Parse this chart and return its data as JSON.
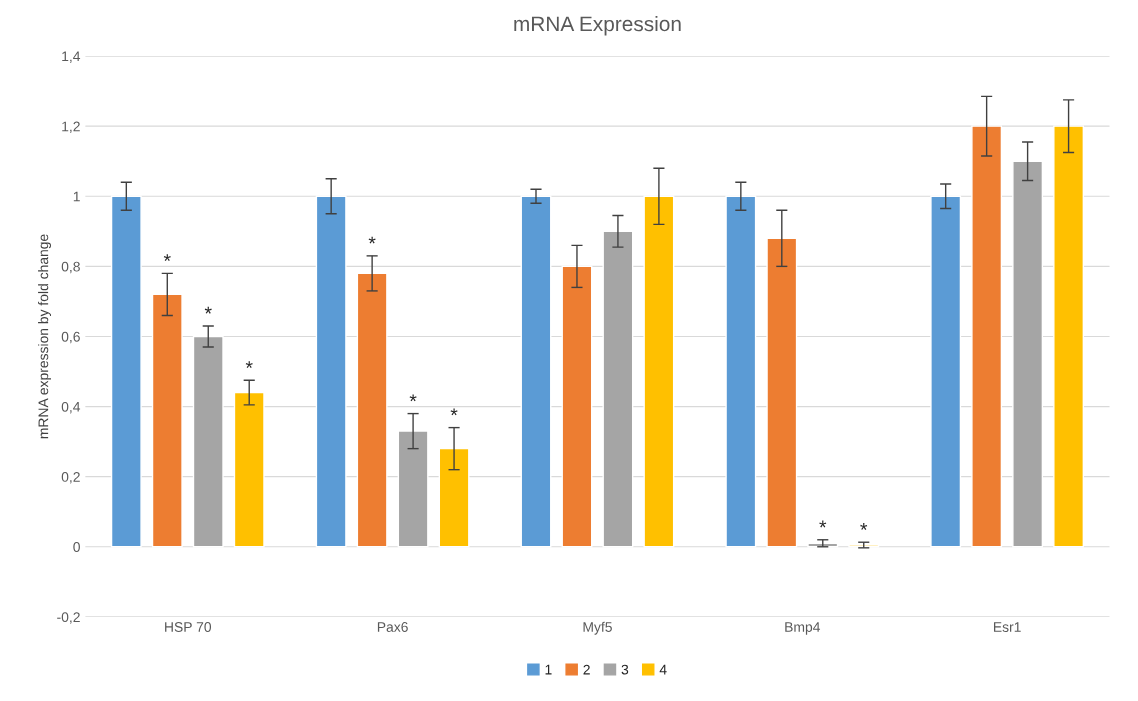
{
  "chart_data": {
    "type": "bar",
    "title": "mRNA Expression",
    "ylabel": "mRNA expression by fold change",
    "categories": [
      "HSP 70",
      "Pax6",
      "Myf5",
      "Bmp4",
      "Esr1"
    ],
    "series": [
      {
        "name": "1",
        "color": "#5b9bd5",
        "values": [
          1,
          1,
          1,
          1,
          1
        ],
        "errors": [
          0.04,
          0.05,
          0.02,
          0.04,
          0.035
        ]
      },
      {
        "name": "2",
        "color": "#ed7d31",
        "values": [
          0.72,
          0.78,
          0.8,
          0.88,
          1.2
        ],
        "errors": [
          0.06,
          0.05,
          0.06,
          0.08,
          0.085
        ],
        "value_labels": [
          "*",
          "*",
          null,
          null,
          null
        ]
      },
      {
        "name": "3",
        "color": "#a5a5a5",
        "values": [
          0.6,
          0.33,
          0.9,
          0.01,
          1.1
        ],
        "errors": [
          0.03,
          0.05,
          0.045,
          0.01,
          0.055
        ],
        "value_labels": [
          "*",
          "*",
          null,
          "*",
          null
        ]
      },
      {
        "name": "4",
        "color": "#ffc000",
        "values": [
          0.44,
          0.28,
          1,
          0.005,
          1.2
        ],
        "errors": [
          0.035,
          0.06,
          0.08,
          0.008,
          0.075
        ],
        "value_labels": [
          "*",
          "*",
          null,
          "*",
          null
        ]
      }
    ],
    "ylim": [
      -0.2,
      1.4
    ],
    "yticks": [
      {
        "value": -0.2,
        "label": "-0,2"
      },
      0,
      {
        "value": 0.2,
        "label": "0,2"
      },
      {
        "value": 0.4,
        "label": "0,4"
      },
      {
        "value": 0.6,
        "label": "0,6"
      },
      {
        "value": 0.8,
        "label": "0,8"
      },
      1,
      {
        "value": 1.2,
        "label": "1,2"
      },
      {
        "value": 1.4,
        "label": "1,4"
      }
    ],
    "grid": "y",
    "legend": "bottom"
  }
}
